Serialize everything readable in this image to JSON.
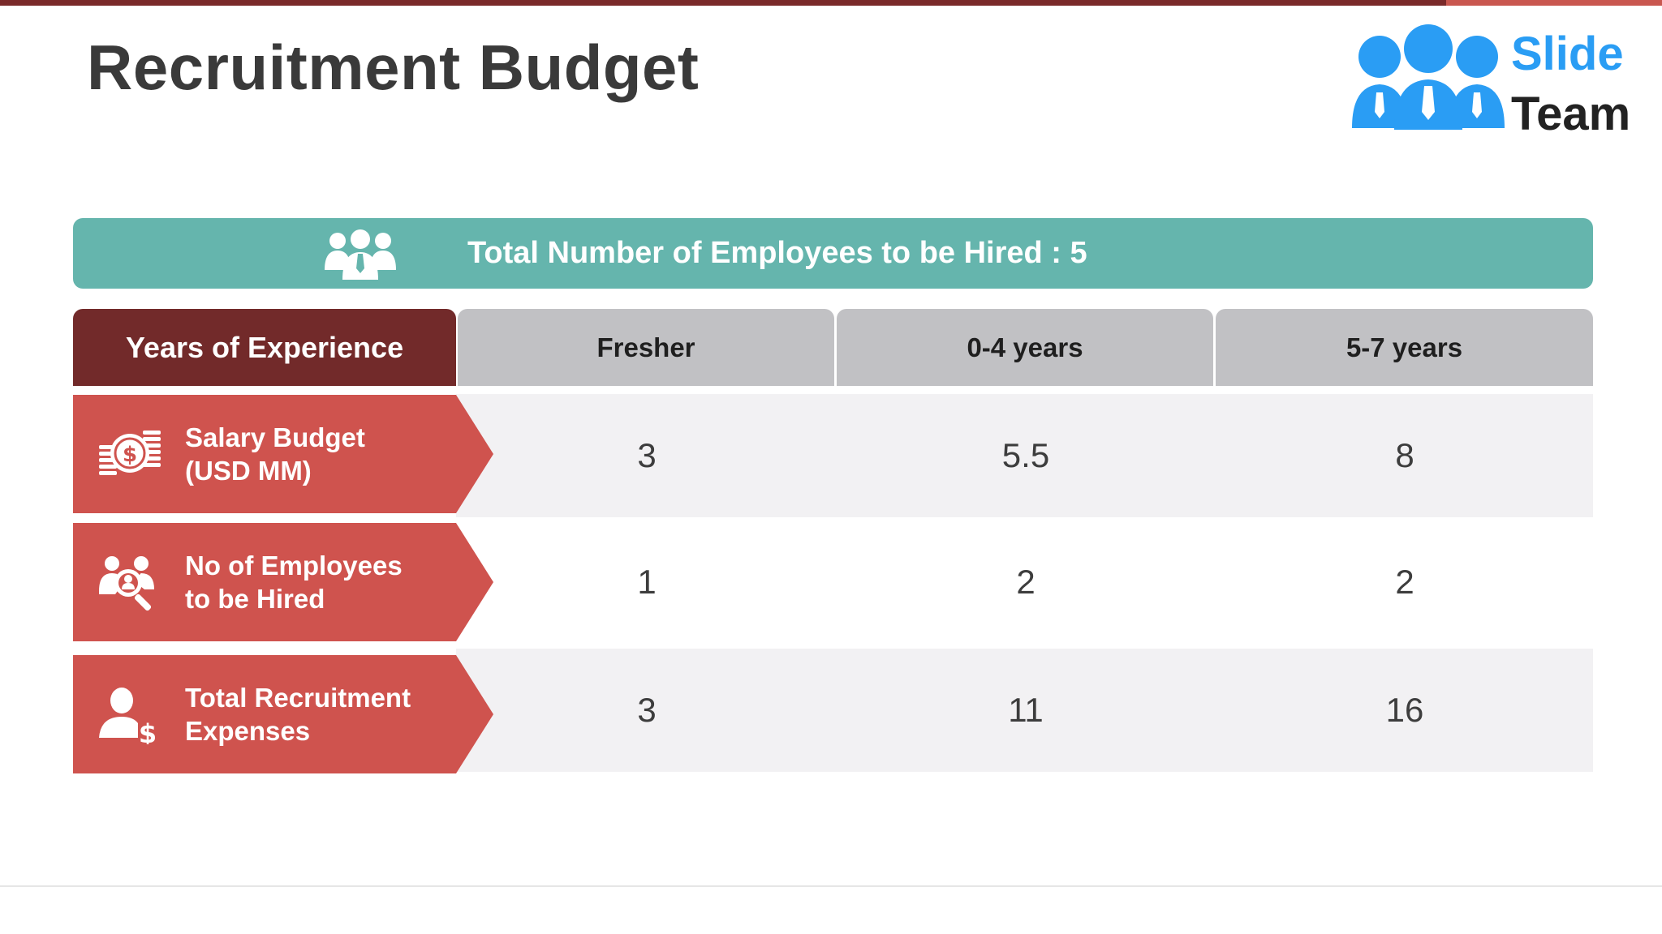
{
  "slide": {
    "title": "Recruitment Budget"
  },
  "logo": {
    "line1": "Slide",
    "line2": "Team",
    "icon": "people-group-logo-icon"
  },
  "banner": {
    "icon": "group-icon",
    "text": "Total Number of Employees to be Hired : 5"
  },
  "table": {
    "header_label": "Years of Experience",
    "columns": [
      "Fresher",
      "0-4 years",
      "5-7 years"
    ],
    "rows": [
      {
        "icon": "money-coins-icon",
        "label_line1": "Salary Budget",
        "label_line2": "(USD MM)",
        "values": [
          "3",
          "5.5",
          "8"
        ]
      },
      {
        "icon": "employee-search-icon",
        "label_line1": "No of Employees",
        "label_line2": "to be Hired",
        "values": [
          "1",
          "2",
          "2"
        ]
      },
      {
        "icon": "person-dollar-icon",
        "label_line1": "Total Recruitment",
        "label_line2": "Expenses",
        "values": [
          "3",
          "11",
          "16"
        ]
      }
    ]
  },
  "colors": {
    "title": "#3a3a3a",
    "banner": "#65b5ad",
    "header_label_bg": "#722a2a",
    "header_col_bg": "#c1c1c4",
    "row_label_bg": "#cf534e",
    "logo_blue": "#2a9df4"
  }
}
